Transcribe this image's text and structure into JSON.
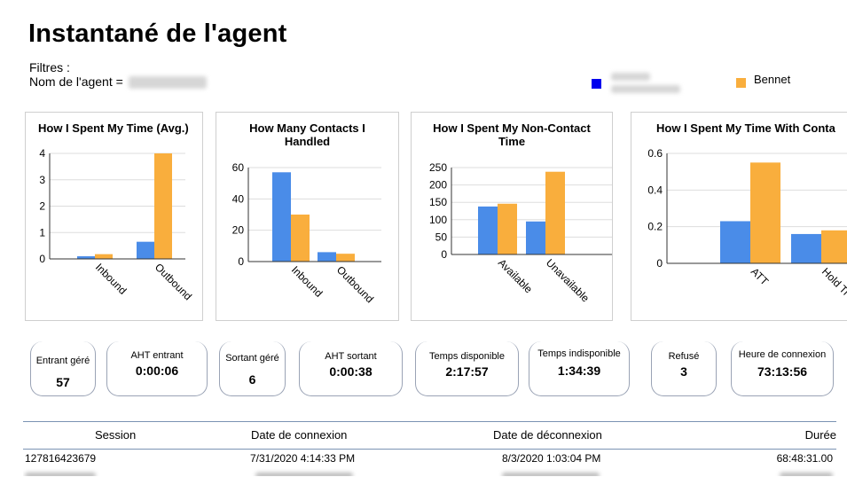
{
  "page": {
    "title": "Instantané de l'agent"
  },
  "filters": {
    "label": "Filtres :",
    "agent_name_label": "Nom de l'agent ="
  },
  "legend": {
    "items": [
      {
        "label": "",
        "color": "#0000ee"
      },
      {
        "label": "Bennet",
        "color": "#f9ae3d"
      }
    ]
  },
  "colors": {
    "series_blue": "#4a8ce8",
    "series_orange": "#f9ae3d",
    "grid": "#dddddd"
  },
  "charts": [
    {
      "title": "How I Spent My Time (Avg.)",
      "chart_data": {
        "type": "bar",
        "categories": [
          "Inbound",
          "Outbound"
        ],
        "series": [
          {
            "values": [
              0.1,
              0.65
            ]
          },
          {
            "values": [
              0.18,
              4.0
            ]
          }
        ],
        "ylim": [
          0,
          4
        ],
        "yticks": [
          "0",
          "1",
          "2",
          "3",
          "4"
        ]
      }
    },
    {
      "title": "How Many Contacts I Handled",
      "chart_data": {
        "type": "bar",
        "categories": [
          "Inbound",
          "Outbound"
        ],
        "series": [
          {
            "values": [
              57,
              6
            ]
          },
          {
            "values": [
              30,
              5
            ]
          }
        ],
        "ylim": [
          0,
          60
        ],
        "yticks": [
          "0",
          "20",
          "40",
          "60"
        ]
      }
    },
    {
      "title": "How I Spent My Non-Contact Time",
      "chart_data": {
        "type": "bar",
        "categories": [
          "Available",
          "Unavailable"
        ],
        "series": [
          {
            "values": [
              138,
              95
            ]
          },
          {
            "values": [
              146,
              238
            ]
          }
        ],
        "ylim": [
          0,
          250
        ],
        "yticks": [
          "0",
          "50",
          "100",
          "150",
          "200",
          "250"
        ]
      }
    },
    {
      "title": "How I Spent My Time With Conta",
      "chart_data": {
        "type": "bar",
        "categories": [
          "ATT",
          "Hold Ti"
        ],
        "series": [
          {
            "values": [
              0.23,
              0.16
            ]
          },
          {
            "values": [
              0.55,
              0.18
            ]
          }
        ],
        "ylim": [
          0,
          0.6
        ],
        "yticks": [
          "0",
          "0.2",
          "0.4",
          "0.6"
        ]
      }
    }
  ],
  "kpis": [
    {
      "label": "Entrant géré",
      "value": "57"
    },
    {
      "label": "AHT entrant",
      "value": "0:00:06"
    },
    {
      "label": "Sortant géré",
      "value": "6"
    },
    {
      "label": "AHT sortant",
      "value": "0:00:38"
    },
    {
      "label": "Temps disponible",
      "value": "2:17:57"
    },
    {
      "label": "Temps indisponible",
      "value": "1:34:39"
    },
    {
      "label": "Refusé",
      "value": "3"
    },
    {
      "label": "Heure de connexion",
      "value": "73:13:56"
    }
  ],
  "table": {
    "columns": [
      "Session",
      "Date de connexion",
      "Date de déconnexion",
      "Durée"
    ],
    "rows": [
      [
        "127816423679",
        "7/31/2020 4:14:33 PM",
        "8/3/2020 1:03:04 PM",
        "68:48:31.00"
      ]
    ]
  }
}
